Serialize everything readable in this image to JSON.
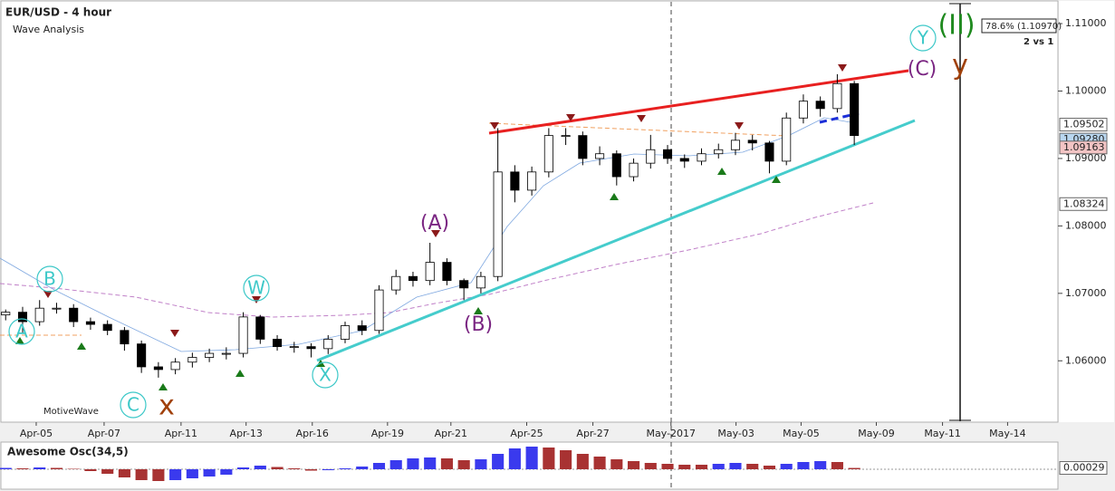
{
  "chart_data": [
    {
      "type": "candlestick",
      "title": "EUR/USD - 4 hour",
      "subtitle": "Wave Analysis",
      "watermark": "MotiveWave",
      "x": [
        1,
        4,
        7,
        10,
        13,
        16,
        19,
        22,
        25,
        28,
        31,
        34,
        37,
        40,
        43,
        46,
        49,
        52,
        55,
        58,
        61,
        64,
        67,
        70,
        73,
        76,
        79,
        82,
        85,
        88,
        91,
        94,
        97,
        100,
        103,
        106,
        109,
        112,
        115,
        118,
        121,
        124,
        127,
        130,
        133,
        136,
        139,
        142,
        145,
        148,
        151
      ],
      "open": [
        1.0668,
        1.0672,
        1.0658,
        1.0678,
        1.0678,
        1.0658,
        1.0654,
        1.0645,
        1.0625,
        1.0591,
        1.0587,
        1.0598,
        1.0605,
        1.0611,
        1.0611,
        1.0665,
        1.0632,
        1.0621,
        1.0621,
        1.0618,
        1.0632,
        1.0652,
        1.0645,
        1.0705,
        1.0725,
        1.0719,
        1.0746,
        1.0719,
        1.0708,
        1.0725,
        1.088,
        1.0853,
        1.088,
        1.0934,
        1.0934,
        1.09,
        1.0907,
        1.0873,
        1.0893,
        1.0913,
        1.09,
        1.0896,
        1.0907,
        1.0913,
        1.0927,
        1.0923,
        1.0896,
        1.096,
        1.0985,
        1.0974,
        1.1011
      ],
      "high": [
        1.0676,
        1.068,
        1.069,
        1.0686,
        1.0684,
        1.0664,
        1.066,
        1.065,
        1.063,
        1.0598,
        1.0604,
        1.0612,
        1.0618,
        1.062,
        1.0672,
        1.0668,
        1.0638,
        1.0628,
        1.0626,
        1.0638,
        1.0658,
        1.066,
        1.0712,
        1.0735,
        1.0732,
        1.0775,
        1.0752,
        1.0722,
        1.0732,
        1.0945,
        1.089,
        1.0888,
        1.0945,
        1.0945,
        1.094,
        1.0918,
        1.0912,
        1.09,
        1.0935,
        1.092,
        1.0906,
        1.0915,
        1.0922,
        1.0938,
        1.0935,
        1.0926,
        1.0968,
        1.0995,
        1.0992,
        1.1025,
        1.1015
      ],
      "low": [
        1.066,
        1.0642,
        1.0652,
        1.067,
        1.065,
        1.0646,
        1.0638,
        1.0615,
        1.0582,
        1.0575,
        1.058,
        1.059,
        1.0598,
        1.0602,
        1.0605,
        1.0625,
        1.0615,
        1.0612,
        1.0605,
        1.061,
        1.0626,
        1.0638,
        1.064,
        1.0698,
        1.071,
        1.0712,
        1.0712,
        1.069,
        1.07,
        1.0718,
        1.0835,
        1.0845,
        1.0872,
        1.092,
        1.089,
        1.089,
        1.086,
        1.0866,
        1.0885,
        1.0892,
        1.0886,
        1.089,
        1.09,
        1.0905,
        1.0912,
        1.0878,
        1.089,
        1.0952,
        1.0962,
        1.0968,
        1.092
      ],
      "close": [
        1.0672,
        1.0658,
        1.0678,
        1.0678,
        1.0658,
        1.0654,
        1.0645,
        1.0625,
        1.0591,
        1.0587,
        1.0598,
        1.0605,
        1.0611,
        1.0611,
        1.0665,
        1.0632,
        1.0621,
        1.0621,
        1.0618,
        1.0632,
        1.0652,
        1.0645,
        1.0705,
        1.0725,
        1.0719,
        1.0746,
        1.0719,
        1.0708,
        1.0725,
        1.088,
        1.0853,
        1.088,
        1.0934,
        1.0934,
        1.09,
        1.0907,
        1.0873,
        1.0893,
        1.0913,
        1.09,
        1.0896,
        1.0907,
        1.0913,
        1.0927,
        1.0923,
        1.0896,
        1.096,
        1.0985,
        1.0974,
        1.1011,
        1.0934
      ],
      "up_color": "#ffffff",
      "down_color": "#000000",
      "xlim": [
        0,
        187
      ],
      "xticks": [
        {
          "value": 6.4,
          "label": "Apr-05"
        },
        {
          "value": 18.4,
          "label": "Apr-07"
        },
        {
          "value": 32,
          "label": "Apr-11"
        },
        {
          "value": 43.5,
          "label": "Apr-13"
        },
        {
          "value": 55.2,
          "label": "Apr-16"
        },
        {
          "value": 68.5,
          "label": "Apr-19"
        },
        {
          "value": 79.7,
          "label": "Apr-21"
        },
        {
          "value": 93.1,
          "label": "Apr-25"
        },
        {
          "value": 104.8,
          "label": "Apr-27"
        },
        {
          "value": 118.6,
          "label": "May-2017"
        },
        {
          "value": 130.1,
          "label": "May-03"
        },
        {
          "value": 141.6,
          "label": "May-05"
        },
        {
          "value": 154.9,
          "label": "May-09"
        },
        {
          "value": 166.6,
          "label": "May-11"
        },
        {
          "value": 178.1,
          "label": "May-14"
        }
      ],
      "ylim": [
        1.0509,
        1.1135
      ],
      "yticks": [
        {
          "value": 1.11,
          "label": "1.11000"
        },
        {
          "value": 1.1,
          "label": "1.10000"
        },
        {
          "value": 1.09,
          "label": "1.09000"
        },
        {
          "value": 1.08,
          "label": "1.08000"
        },
        {
          "value": 1.07,
          "label": "1.07000"
        },
        {
          "value": 1.06,
          "label": "1.06000"
        }
      ],
      "price_markers": [
        {
          "value": 1.09502,
          "label": "1.09502",
          "color": "#ffffff"
        },
        {
          "value": 1.0928,
          "label": "1.09280",
          "color": "#b9d7f0"
        },
        {
          "value": 1.09163,
          "label": "1.09163",
          "color": "#f3c4c4"
        },
        {
          "value": 1.08324,
          "label": "1.08324",
          "color": "#ffffff"
        }
      ],
      "wave_labels": [
        {
          "text": "A",
          "color": "#3cc8c8"
        },
        {
          "text": "B",
          "color": "#3cc8c8"
        },
        {
          "text": "C",
          "color": "#3cc8c8"
        },
        {
          "text": "W",
          "color": "#3cc8c8"
        },
        {
          "text": "X",
          "color": "#3cc8c8"
        },
        {
          "text": "Y",
          "color": "#3cc8c8"
        },
        {
          "text": "(A)",
          "color": "#7a2582"
        },
        {
          "text": "(B)",
          "color": "#7a2582"
        },
        {
          "text": "(C)",
          "color": "#7a2582"
        },
        {
          "text": "x",
          "color": "#a0400a"
        },
        {
          "text": "y",
          "color": "#a0400a"
        },
        {
          "text": "(II)",
          "color": "#1f8a1f"
        }
      ],
      "fib_label": "78.6% (1.10970)",
      "count_label": "2 vs 1"
    },
    {
      "type": "oscillator",
      "title": "Awesome Osc(34,5)",
      "x": [
        1,
        4,
        7,
        10,
        13,
        16,
        19,
        22,
        25,
        28,
        31,
        34,
        37,
        40,
        43,
        46,
        49,
        52,
        55,
        58,
        61,
        64,
        67,
        70,
        73,
        76,
        79,
        82,
        85,
        88,
        91,
        94,
        97,
        100,
        103,
        106,
        109,
        112,
        115,
        118,
        121,
        124,
        127,
        130,
        133,
        136,
        139,
        142,
        145,
        148,
        151
      ],
      "values": [
        0.0003,
        0.0002,
        0.0004,
        0.0003,
        0.0001,
        -0.0004,
        -0.001,
        -0.0018,
        -0.0024,
        -0.0026,
        -0.0024,
        -0.002,
        -0.0016,
        -0.0012,
        0.0004,
        0.0008,
        0.0005,
        0.0002,
        -0.0003,
        -0.0002,
        0.0002,
        0.0006,
        0.0014,
        0.002,
        0.0024,
        0.0026,
        0.0024,
        0.002,
        0.0022,
        0.0034,
        0.0046,
        0.005,
        0.0048,
        0.0042,
        0.0034,
        0.0028,
        0.0022,
        0.0018,
        0.0014,
        0.0012,
        0.001,
        0.001,
        0.0012,
        0.0014,
        0.0012,
        0.0008,
        0.0012,
        0.0016,
        0.0018,
        0.0016,
        0.00029
      ],
      "last_value_label": "0.00029",
      "rise_color": "#3a3aee",
      "fall_color": "#a83232",
      "xlim": [
        0,
        187
      ],
      "ylim": [
        -0.004,
        0.0052
      ]
    }
  ]
}
